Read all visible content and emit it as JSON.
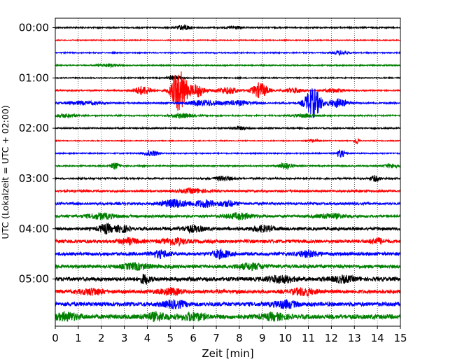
{
  "chart_data": {
    "type": "line",
    "xlabel": "Zeit  [min]",
    "ylabel": "UTC (Lokalzeit = UTC + 02:00)",
    "xlim": [
      0,
      15
    ],
    "x_ticks": [
      "0",
      "1",
      "2",
      "3",
      "4",
      "5",
      "6",
      "7",
      "8",
      "9",
      "10",
      "11",
      "12",
      "13",
      "14",
      "15"
    ],
    "y_ticks": [
      "00:00",
      "01:00",
      "02:00",
      "03:00",
      "04:00",
      "05:00"
    ],
    "grid": "vertical dotted at each minute",
    "trace_interval_minutes": 15,
    "trace_colors": [
      "#000000",
      "#ff0000",
      "#0000ff",
      "#008000"
    ],
    "series": [
      {
        "start": "00:00",
        "noise": 0.12,
        "events": [
          {
            "t": 5.6,
            "amp": 0.5,
            "w": 0.3
          },
          {
            "t": 7.8,
            "amp": 0.3,
            "w": 0.3
          }
        ]
      },
      {
        "start": "00:15",
        "noise": 0.08,
        "events": []
      },
      {
        "start": "00:30",
        "noise": 0.1,
        "events": [
          {
            "t": 12.4,
            "amp": 0.4,
            "w": 0.3
          }
        ]
      },
      {
        "start": "00:45",
        "noise": 0.1,
        "events": [
          {
            "t": 2.3,
            "amp": 0.3,
            "w": 0.5
          }
        ]
      },
      {
        "start": "01:00",
        "noise": 0.1,
        "events": [
          {
            "t": 5.2,
            "amp": 0.45,
            "w": 0.3
          }
        ]
      },
      {
        "start": "01:15",
        "noise": 0.12,
        "events": [
          {
            "t": 3.8,
            "amp": 0.8,
            "w": 0.4
          },
          {
            "t": 5.4,
            "amp": 4.0,
            "w": 0.35
          },
          {
            "t": 6.2,
            "amp": 1.2,
            "w": 0.3
          },
          {
            "t": 7.5,
            "amp": 0.6,
            "w": 0.5
          },
          {
            "t": 8.9,
            "amp": 1.4,
            "w": 0.35
          },
          {
            "t": 10.4,
            "amp": 0.5,
            "w": 0.4
          },
          {
            "t": 12.1,
            "amp": 0.4,
            "w": 0.4
          }
        ]
      },
      {
        "start": "01:30",
        "noise": 0.14,
        "events": [
          {
            "t": 1.2,
            "amp": 0.3,
            "w": 0.8
          },
          {
            "t": 6.5,
            "amp": 0.5,
            "w": 0.8
          },
          {
            "t": 8.0,
            "amp": 0.4,
            "w": 0.6
          },
          {
            "t": 11.2,
            "amp": 2.8,
            "w": 0.35
          },
          {
            "t": 12.3,
            "amp": 0.8,
            "w": 0.4
          }
        ]
      },
      {
        "start": "01:45",
        "noise": 0.12,
        "events": [
          {
            "t": 0.4,
            "amp": 0.3,
            "w": 0.5
          },
          {
            "t": 5.5,
            "amp": 0.4,
            "w": 0.5
          },
          {
            "t": 10.8,
            "amp": 0.3,
            "w": 0.5
          }
        ]
      },
      {
        "start": "02:00",
        "noise": 0.12,
        "events": [
          {
            "t": 8.0,
            "amp": 0.3,
            "w": 0.4
          }
        ]
      },
      {
        "start": "02:15",
        "noise": 0.08,
        "events": [
          {
            "t": 13.1,
            "amp": 0.7,
            "w": 0.1
          },
          {
            "t": 11.2,
            "amp": 0.2,
            "w": 0.3
          }
        ]
      },
      {
        "start": "02:30",
        "noise": 0.1,
        "events": [
          {
            "t": 4.2,
            "amp": 0.5,
            "w": 0.3
          },
          {
            "t": 12.4,
            "amp": 0.7,
            "w": 0.2
          }
        ]
      },
      {
        "start": "02:45",
        "noise": 0.12,
        "events": [
          {
            "t": 2.6,
            "amp": 0.6,
            "w": 0.2
          },
          {
            "t": 10.0,
            "amp": 0.6,
            "w": 0.3
          },
          {
            "t": 14.6,
            "amp": 0.4,
            "w": 0.3
          }
        ]
      },
      {
        "start": "03:00",
        "noise": 0.15,
        "events": [
          {
            "t": 7.3,
            "amp": 0.4,
            "w": 0.4
          },
          {
            "t": 13.9,
            "amp": 0.5,
            "w": 0.2
          }
        ]
      },
      {
        "start": "03:15",
        "noise": 0.18,
        "events": [
          {
            "t": 6.0,
            "amp": 0.4,
            "w": 0.6
          }
        ]
      },
      {
        "start": "03:30",
        "noise": 0.22,
        "events": [
          {
            "t": 5.2,
            "amp": 0.7,
            "w": 0.6
          },
          {
            "t": 6.5,
            "amp": 0.6,
            "w": 0.5
          },
          {
            "t": 7.5,
            "amp": 0.5,
            "w": 0.4
          }
        ]
      },
      {
        "start": "03:45",
        "noise": 0.24,
        "events": [
          {
            "t": 2.0,
            "amp": 0.5,
            "w": 0.6
          },
          {
            "t": 8.0,
            "amp": 0.5,
            "w": 0.6
          },
          {
            "t": 12.0,
            "amp": 0.4,
            "w": 0.6
          }
        ]
      },
      {
        "start": "04:00",
        "noise": 0.28,
        "events": [
          {
            "t": 2.2,
            "amp": 0.8,
            "w": 0.3
          },
          {
            "t": 2.9,
            "amp": 0.6,
            "w": 0.3
          },
          {
            "t": 6.0,
            "amp": 0.5,
            "w": 0.5
          },
          {
            "t": 9.0,
            "amp": 0.5,
            "w": 0.5
          }
        ]
      },
      {
        "start": "04:15",
        "noise": 0.3,
        "events": [
          {
            "t": 3.2,
            "amp": 0.5,
            "w": 0.4
          },
          {
            "t": 5.2,
            "amp": 0.6,
            "w": 0.5
          },
          {
            "t": 14.0,
            "amp": 0.5,
            "w": 0.3
          }
        ]
      },
      {
        "start": "04:30",
        "noise": 0.3,
        "events": [
          {
            "t": 4.6,
            "amp": 0.6,
            "w": 0.4
          },
          {
            "t": 7.2,
            "amp": 0.7,
            "w": 0.4
          },
          {
            "t": 11.0,
            "amp": 0.5,
            "w": 0.5
          }
        ]
      },
      {
        "start": "04:45",
        "noise": 0.32,
        "events": [
          {
            "t": 3.5,
            "amp": 0.5,
            "w": 0.6
          },
          {
            "t": 8.5,
            "amp": 0.5,
            "w": 0.6
          }
        ]
      },
      {
        "start": "05:00",
        "noise": 0.36,
        "events": [
          {
            "t": 3.9,
            "amp": 0.8,
            "w": 0.2
          },
          {
            "t": 9.8,
            "amp": 0.6,
            "w": 0.6
          },
          {
            "t": 12.5,
            "amp": 0.5,
            "w": 0.5
          }
        ]
      },
      {
        "start": "05:15",
        "noise": 0.34,
        "events": [
          {
            "t": 1.6,
            "amp": 0.5,
            "w": 0.5
          },
          {
            "t": 5.0,
            "amp": 0.5,
            "w": 0.5
          },
          {
            "t": 10.8,
            "amp": 0.6,
            "w": 0.5
          }
        ]
      },
      {
        "start": "05:30",
        "noise": 0.38,
        "events": [
          {
            "t": 5.2,
            "amp": 0.6,
            "w": 0.5
          },
          {
            "t": 10.0,
            "amp": 0.6,
            "w": 0.5
          }
        ]
      },
      {
        "start": "05:45",
        "noise": 0.42,
        "events": [
          {
            "t": 0.5,
            "amp": 0.6,
            "w": 0.5
          },
          {
            "t": 4.4,
            "amp": 0.6,
            "w": 0.5
          },
          {
            "t": 6.0,
            "amp": 0.6,
            "w": 0.5
          },
          {
            "t": 9.5,
            "amp": 0.5,
            "w": 0.5
          }
        ]
      }
    ]
  }
}
